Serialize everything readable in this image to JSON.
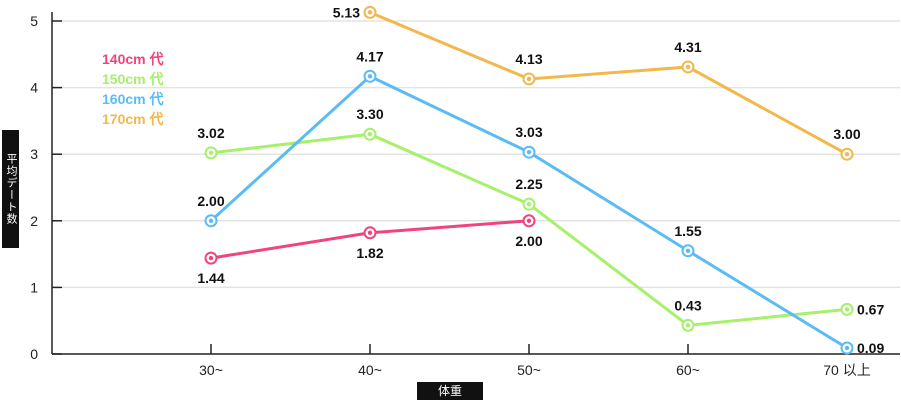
{
  "chart_data": {
    "type": "line",
    "xlabel": "体重",
    "ylabel": "平均デート数",
    "categories": [
      "30~",
      "40~",
      "50~",
      "60~",
      "70 以上"
    ],
    "ylim": [
      0,
      5
    ],
    "yticks": [
      "0",
      "1",
      "2",
      "3",
      "4",
      "5"
    ],
    "grid": true,
    "legend_position": "top-left",
    "series": [
      {
        "name": "140cm 代",
        "color": "#f0437f",
        "values": [
          1.44,
          1.82,
          2.0,
          null,
          null
        ]
      },
      {
        "name": "150cm 代",
        "color": "#a6f06b",
        "values": [
          3.02,
          3.3,
          2.25,
          0.43,
          0.67
        ]
      },
      {
        "name": "160cm 代",
        "color": "#5bbcf5",
        "values": [
          2.0,
          4.17,
          3.03,
          1.55,
          0.09
        ]
      },
      {
        "name": "170cm 代",
        "color": "#f2b84b",
        "values": [
          null,
          5.13,
          4.13,
          4.31,
          3.0
        ]
      }
    ]
  }
}
